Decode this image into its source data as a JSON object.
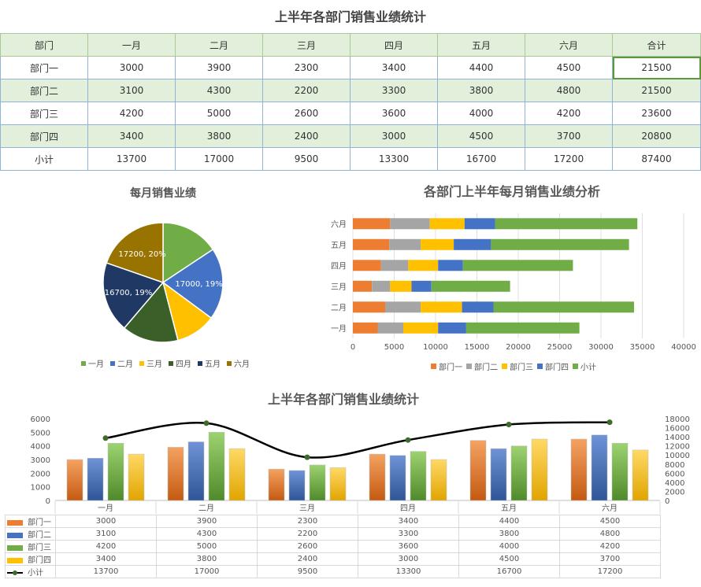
{
  "report": {
    "title": "上半年各部门销售业绩统计"
  },
  "table": {
    "header": [
      "部门",
      "一月",
      "二月",
      "三月",
      "四月",
      "五月",
      "六月",
      "合计"
    ],
    "rows": [
      [
        "部门一",
        "3000",
        "3900",
        "2300",
        "3400",
        "4400",
        "4500",
        "21500"
      ],
      [
        "部门二",
        "3100",
        "4300",
        "2200",
        "3300",
        "3800",
        "4800",
        "21500"
      ],
      [
        "部门三",
        "4200",
        "5000",
        "2600",
        "3600",
        "4000",
        "4200",
        "23600"
      ],
      [
        "部门四",
        "3400",
        "3800",
        "2400",
        "3000",
        "4500",
        "3700",
        "20800"
      ],
      [
        "小计",
        "13700",
        "17000",
        "9500",
        "13300",
        "16700",
        "17200",
        "87400"
      ]
    ]
  },
  "colors": {
    "dept1": "#ed7d31",
    "dept2": "#a5a5a5",
    "dept3": "#ffc000",
    "dept4": "#4472c4",
    "total": "#70ad47",
    "pie": [
      "#70ad47",
      "#4472c4",
      "#ffc000",
      "#3a5f28",
      "#203864",
      "#997300"
    ]
  },
  "chart_data": [
    {
      "type": "pie",
      "title": "每月销售业绩",
      "categories": [
        "一月",
        "二月",
        "三月",
        "四月",
        "五月",
        "六月"
      ],
      "values": [
        13700,
        17000,
        9500,
        13300,
        16700,
        17200
      ],
      "data_labels": [
        "",
        "17000, 19%",
        "",
        "",
        "16700, 19%",
        "17200, 20%"
      ],
      "legend": "bottom"
    },
    {
      "type": "bar",
      "orientation": "horizontal",
      "stacked": true,
      "title": "各部门上半年每月销售业绩分析",
      "categories": [
        "一月",
        "二月",
        "三月",
        "四月",
        "五月",
        "六月"
      ],
      "series": [
        {
          "name": "部门一",
          "values": [
            3000,
            3900,
            2300,
            3400,
            4400,
            4500
          ]
        },
        {
          "name": "部门二",
          "values": [
            3100,
            4300,
            2200,
            3300,
            3800,
            4800
          ]
        },
        {
          "name": "部门三",
          "values": [
            4200,
            5000,
            2600,
            3600,
            4000,
            4200
          ]
        },
        {
          "name": "部门四",
          "values": [
            3400,
            3800,
            2400,
            3000,
            4500,
            3700
          ]
        },
        {
          "name": "小计",
          "values": [
            13700,
            17000,
            9500,
            13300,
            16700,
            17200
          ]
        }
      ],
      "xlim": [
        0,
        40000
      ],
      "xticks": [
        "0",
        "5000",
        "10000",
        "15000",
        "20000",
        "25000",
        "30000",
        "35000",
        "40000"
      ],
      "grid": true,
      "legend": "bottom"
    },
    {
      "type": "bar",
      "subtype": "combo bar + line (secondary axis)",
      "title": "上半年各部门销售业绩统计",
      "categories": [
        "一月",
        "二月",
        "三月",
        "四月",
        "五月",
        "六月"
      ],
      "series": [
        {
          "name": "部门一",
          "type": "bar",
          "values": [
            3000,
            3900,
            2300,
            3400,
            4400,
            4500
          ]
        },
        {
          "name": "部门二",
          "type": "bar",
          "values": [
            3100,
            4300,
            2200,
            3300,
            3800,
            4800
          ]
        },
        {
          "name": "部门三",
          "type": "bar",
          "values": [
            4200,
            5000,
            2600,
            3600,
            4000,
            4200
          ]
        },
        {
          "name": "部门四",
          "type": "bar",
          "values": [
            3400,
            3800,
            2400,
            3000,
            4500,
            3700
          ]
        },
        {
          "name": "小计",
          "type": "line",
          "axis": "secondary",
          "values": [
            13700,
            17000,
            9500,
            13300,
            16700,
            17200
          ]
        }
      ],
      "ylim": [
        0,
        6000
      ],
      "yticks": [
        "0",
        "1000",
        "2000",
        "3000",
        "4000",
        "5000",
        "6000"
      ],
      "y2lim": [
        0,
        18000
      ],
      "y2ticks": [
        "0",
        "2000",
        "4000",
        "6000",
        "8000",
        "10000",
        "12000",
        "14000",
        "16000",
        "18000"
      ],
      "data_table": true
    }
  ]
}
